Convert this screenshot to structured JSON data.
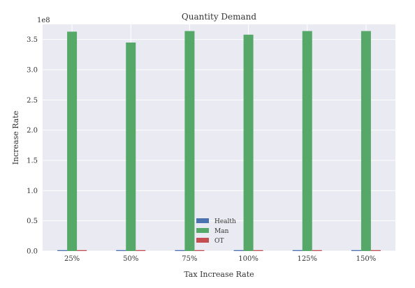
{
  "chart_data": {
    "type": "bar",
    "title": "Quantity Demand",
    "xlabel": "Tax Increase Rate",
    "ylabel": "Increase Rate",
    "y_offset_label": "1e8",
    "categories": [
      "25%",
      "50%",
      "75%",
      "100%",
      "125%",
      "150%"
    ],
    "series": [
      {
        "name": "Health",
        "color": "#4c72b0",
        "values": [
          1500000,
          1500000,
          1500000,
          1500000,
          1500000,
          1500000
        ]
      },
      {
        "name": "Man",
        "color": "#55a868",
        "values": [
          363000000,
          345000000,
          364000000,
          358000000,
          364000000,
          364000000
        ]
      },
      {
        "name": "OT",
        "color": "#c44e52",
        "values": [
          1500000,
          1500000,
          1500000,
          1500000,
          1500000,
          1500000
        ]
      }
    ],
    "ylim": [
      0,
      375000000
    ],
    "yticks": [
      0,
      50000000,
      100000000,
      150000000,
      200000000,
      250000000,
      300000000,
      350000000
    ],
    "ytick_labels": [
      "0.0",
      "0.5",
      "1.0",
      "1.5",
      "2.0",
      "2.5",
      "3.0",
      "3.5"
    ],
    "grid": true,
    "legend": "bottom-center",
    "background": "#eaeaf2"
  }
}
